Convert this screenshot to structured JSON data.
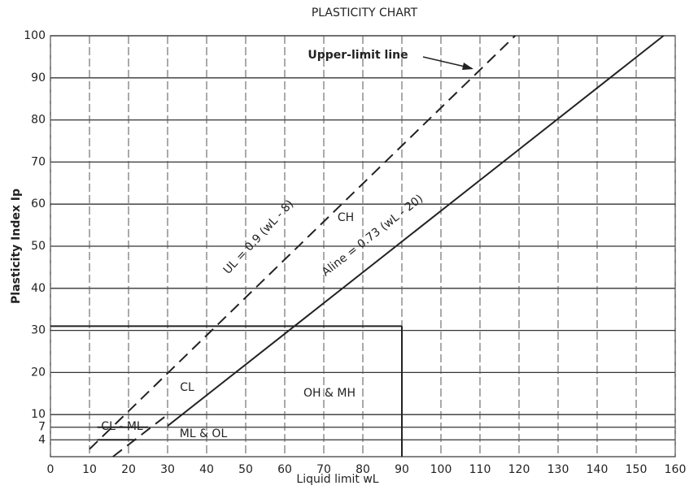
{
  "chart_data": {
    "type": "line",
    "title": "PLASTICITY CHART",
    "xlabel": "Liquid limit wL",
    "ylabel": "Plasticity Index Ip",
    "xlim": [
      0,
      160
    ],
    "ylim": [
      0,
      100
    ],
    "xticks": [
      0,
      10,
      20,
      30,
      40,
      50,
      60,
      70,
      80,
      90,
      100,
      110,
      120,
      130,
      140,
      150,
      160
    ],
    "yticks": [
      4,
      7,
      10,
      20,
      30,
      40,
      50,
      60,
      70,
      80,
      90,
      100
    ],
    "grid": true,
    "series": [
      {
        "color": "#222222",
        "dashed": false,
        "x": [
          30,
          157
        ],
        "values": [
          7.3,
          100
        ]
      },
      {
        "color": "#222222",
        "dashed": true,
        "x": [
          10,
          119
        ],
        "values": [
          1.8,
          100
        ]
      },
      {
        "color": "#222222",
        "dashed": true,
        "x": [
          16,
          30
        ],
        "values": [
          0,
          10
        ]
      },
      {
        "color": "#222222",
        "dashed": false,
        "x": [
          12,
          25
        ],
        "values": [
          7,
          7
        ]
      },
      {
        "color": "#222222",
        "dashed": false,
        "x": [
          12,
          22
        ],
        "values": [
          4,
          4
        ]
      },
      {
        "color": "#222222",
        "dashed": false,
        "x": [
          90,
          90
        ],
        "values": [
          0,
          31
        ]
      },
      {
        "color": "#222222",
        "dashed": false,
        "x": [
          0,
          90
        ],
        "values": [
          31,
          31
        ]
      }
    ],
    "annotations": [
      "Upper-limit line",
      "CH",
      "CL",
      "CL - ML",
      "ML & OL",
      "OH & MH",
      "UL = 0.9 (wL - 8)",
      "Aline = 0.73 (wL - 20)"
    ]
  }
}
